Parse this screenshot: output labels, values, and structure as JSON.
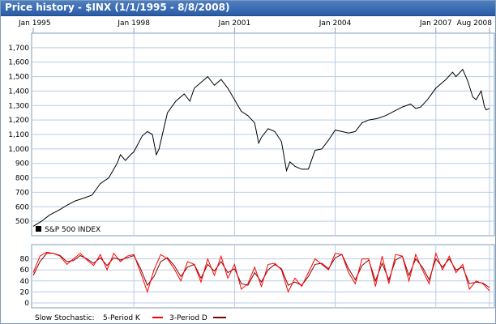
{
  "header": {
    "title": "Price history - $INX (1/1/1995 - 8/8/2008)"
  },
  "colors": {
    "price": "#000000",
    "k": "#ff0000",
    "d": "#800000",
    "grid": "#b8cde6",
    "panel_border": "#7f9db9"
  },
  "chart_data": [
    {
      "type": "line",
      "title": "Price history - $INX (1/1/1995 - 8/8/2008)",
      "x_range": [
        1995.0,
        2008.6
      ],
      "x_ticks": [
        {
          "label": "Jan 1995",
          "value": 1995.0
        },
        {
          "label": "Jan 1998",
          "value": 1998.0
        },
        {
          "label": "Jan 2001",
          "value": 2001.0
        },
        {
          "label": "Jan 2004",
          "value": 2004.0
        },
        {
          "label": "Jan 2007",
          "value": 2007.0
        },
        {
          "label": "Aug 2008",
          "value": 2008.6
        }
      ],
      "ylim": [
        400,
        1800
      ],
      "y_ticks": [
        "1,700",
        "1,600",
        "1,500",
        "1,400",
        "1,300",
        "1,200",
        "1,100",
        "1,000",
        "900",
        "800",
        "700",
        "600",
        "500"
      ],
      "y_tick_values": [
        1700,
        1600,
        1500,
        1400,
        1300,
        1200,
        1100,
        1000,
        900,
        800,
        700,
        600,
        500
      ],
      "grid": true,
      "legend": {
        "position": "bottom-left",
        "entries": [
          "S&P 500 INDEX"
        ]
      },
      "series": [
        {
          "name": "S&P 500 INDEX",
          "x": [
            1995.0,
            1995.25,
            1995.5,
            1995.75,
            1996.0,
            1996.25,
            1996.5,
            1996.75,
            1997.0,
            1997.25,
            1997.5,
            1997.6,
            1997.75,
            1997.9,
            1998.0,
            1998.25,
            1998.4,
            1998.55,
            1998.67,
            1998.75,
            1999.0,
            1999.25,
            1999.5,
            1999.67,
            1999.8,
            2000.0,
            2000.2,
            2000.4,
            2000.6,
            2000.8,
            2001.0,
            2001.2,
            2001.4,
            2001.6,
            2001.72,
            2001.8,
            2002.0,
            2002.2,
            2002.4,
            2002.55,
            2002.65,
            2002.8,
            2003.0,
            2003.2,
            2003.4,
            2003.6,
            2003.8,
            2004.0,
            2004.2,
            2004.4,
            2004.6,
            2004.8,
            2005.0,
            2005.25,
            2005.5,
            2005.75,
            2006.0,
            2006.25,
            2006.4,
            2006.55,
            2006.75,
            2007.0,
            2007.15,
            2007.3,
            2007.5,
            2007.6,
            2007.8,
            2007.95,
            2008.1,
            2008.2,
            2008.35,
            2008.45,
            2008.5,
            2008.6
          ],
          "y": [
            465,
            500,
            545,
            575,
            610,
            640,
            660,
            680,
            760,
            800,
            900,
            960,
            920,
            960,
            980,
            1090,
            1120,
            1100,
            960,
            1000,
            1250,
            1330,
            1380,
            1330,
            1420,
            1460,
            1500,
            1440,
            1480,
            1420,
            1340,
            1260,
            1230,
            1180,
            1040,
            1080,
            1140,
            1120,
            1050,
            850,
            910,
            880,
            860,
            860,
            990,
            1000,
            1060,
            1130,
            1120,
            1110,
            1120,
            1180,
            1200,
            1210,
            1230,
            1260,
            1290,
            1310,
            1280,
            1290,
            1340,
            1420,
            1450,
            1480,
            1530,
            1500,
            1550,
            1470,
            1360,
            1340,
            1400,
            1290,
            1270,
            1280
          ]
        }
      ]
    },
    {
      "type": "line",
      "title": "",
      "ylim": [
        0,
        100
      ],
      "y_ticks": [
        "80",
        "60",
        "40",
        "20",
        "0"
      ],
      "y_tick_values": [
        80,
        60,
        40,
        20,
        0
      ],
      "grid": true,
      "legend": {
        "position": "bottom-left",
        "entries": [
          "Slow Stochastic:",
          "5-Period K",
          "3-Period D"
        ]
      },
      "series": [
        {
          "name": "5-Period K",
          "x": [
            1995.0,
            1995.2,
            1995.4,
            1995.6,
            1995.8,
            1996.0,
            1996.2,
            1996.4,
            1996.6,
            1996.8,
            1997.0,
            1997.2,
            1997.4,
            1997.6,
            1997.8,
            1998.0,
            1998.2,
            1998.4,
            1998.6,
            1998.8,
            1999.0,
            1999.2,
            1999.4,
            1999.6,
            1999.8,
            2000.0,
            2000.2,
            2000.4,
            2000.6,
            2000.8,
            2001.0,
            2001.2,
            2001.4,
            2001.6,
            2001.8,
            2002.0,
            2002.2,
            2002.4,
            2002.6,
            2002.8,
            2003.0,
            2003.2,
            2003.4,
            2003.6,
            2003.8,
            2004.0,
            2004.2,
            2004.4,
            2004.6,
            2004.8,
            2005.0,
            2005.2,
            2005.4,
            2005.6,
            2005.8,
            2006.0,
            2006.2,
            2006.4,
            2006.6,
            2006.8,
            2007.0,
            2007.2,
            2007.4,
            2007.6,
            2007.8,
            2008.0,
            2008.2,
            2008.4,
            2008.6
          ],
          "y": [
            55,
            85,
            92,
            90,
            85,
            70,
            80,
            90,
            78,
            68,
            88,
            60,
            90,
            75,
            85,
            88,
            55,
            20,
            60,
            88,
            80,
            62,
            40,
            75,
            70,
            38,
            80,
            50,
            85,
            45,
            70,
            25,
            35,
            65,
            30,
            70,
            72,
            60,
            20,
            45,
            30,
            55,
            80,
            70,
            60,
            90,
            88,
            55,
            35,
            80,
            80,
            30,
            85,
            35,
            88,
            85,
            40,
            88,
            60,
            35,
            90,
            60,
            85,
            55,
            70,
            25,
            40,
            35,
            22
          ]
        },
        {
          "name": "3-Period D",
          "x": [
            1995.0,
            1995.2,
            1995.4,
            1995.6,
            1995.8,
            1996.0,
            1996.2,
            1996.4,
            1996.6,
            1996.8,
            1997.0,
            1997.2,
            1997.4,
            1997.6,
            1997.8,
            1998.0,
            1998.2,
            1998.4,
            1998.6,
            1998.8,
            1999.0,
            1999.2,
            1999.4,
            1999.6,
            1999.8,
            2000.0,
            2000.2,
            2000.4,
            2000.6,
            2000.8,
            2001.0,
            2001.2,
            2001.4,
            2001.6,
            2001.8,
            2002.0,
            2002.2,
            2002.4,
            2002.6,
            2002.8,
            2003.0,
            2003.2,
            2003.4,
            2003.6,
            2003.8,
            2004.0,
            2004.2,
            2004.4,
            2004.6,
            2004.8,
            2005.0,
            2005.2,
            2005.4,
            2005.6,
            2005.8,
            2006.0,
            2006.2,
            2006.4,
            2006.6,
            2006.8,
            2007.0,
            2007.2,
            2007.4,
            2007.6,
            2007.8,
            2008.0,
            2008.2,
            2008.4,
            2008.6
          ],
          "y": [
            50,
            75,
            90,
            90,
            86,
            75,
            77,
            86,
            80,
            72,
            82,
            68,
            82,
            78,
            82,
            86,
            62,
            32,
            48,
            75,
            82,
            68,
            48,
            65,
            70,
            45,
            70,
            58,
            75,
            55,
            62,
            35,
            32,
            55,
            38,
            60,
            70,
            62,
            32,
            38,
            32,
            48,
            70,
            72,
            62,
            82,
            88,
            62,
            42,
            68,
            78,
            40,
            72,
            42,
            78,
            85,
            50,
            80,
            65,
            42,
            80,
            65,
            80,
            60,
            65,
            35,
            38,
            36,
            28
          ]
        }
      ]
    }
  ]
}
